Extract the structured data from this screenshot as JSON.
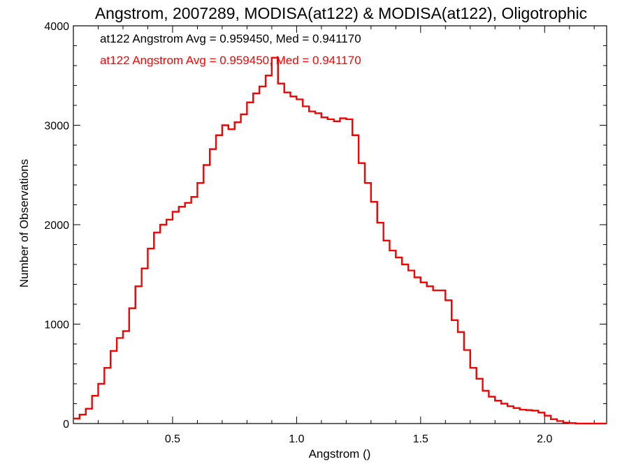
{
  "chart_data": {
    "type": "line",
    "title": "Angstrom, 2007289, MODISA(at122) & MODISA(at122), Oligotrophic",
    "xlabel": "Angstrom ()",
    "ylabel": "Number of Observations",
    "xlim": [
      0.1,
      2.25
    ],
    "ylim": [
      0,
      4000
    ],
    "x_ticks": [
      0.5,
      1.0,
      1.5,
      2.0
    ],
    "x_tick_labels": [
      "0.5",
      "1.0",
      "1.5",
      "2.0"
    ],
    "y_ticks": [
      0,
      1000,
      2000,
      3000,
      4000
    ],
    "y_tick_labels": [
      "0",
      "1000",
      "2000",
      "3000",
      "4000"
    ],
    "grid": false,
    "legend_placement": "top-left",
    "series": [
      {
        "name": "at122 Angstrom Avg = 0.959450, Med = 0.941170",
        "color": "#000000",
        "x": [
          0.1,
          0.125,
          0.15,
          0.175,
          0.2,
          0.225,
          0.25,
          0.275,
          0.3,
          0.325,
          0.35,
          0.375,
          0.4,
          0.425,
          0.45,
          0.475,
          0.5,
          0.525,
          0.55,
          0.575,
          0.6,
          0.625,
          0.65,
          0.675,
          0.7,
          0.725,
          0.75,
          0.775,
          0.8,
          0.825,
          0.85,
          0.875,
          0.9,
          0.925,
          0.95,
          0.975,
          1.0,
          1.025,
          1.05,
          1.075,
          1.1,
          1.125,
          1.15,
          1.175,
          1.2,
          1.225,
          1.25,
          1.275,
          1.3,
          1.325,
          1.35,
          1.375,
          1.4,
          1.425,
          1.45,
          1.475,
          1.5,
          1.525,
          1.55,
          1.575,
          1.6,
          1.625,
          1.65,
          1.675,
          1.7,
          1.725,
          1.75,
          1.775,
          1.8,
          1.825,
          1.85,
          1.875,
          1.9,
          1.925,
          1.95,
          1.975,
          2.0,
          2.025,
          2.05,
          2.075,
          2.1,
          2.125,
          2.15,
          2.175,
          2.2,
          2.25
        ],
        "y": [
          50,
          90,
          150,
          280,
          400,
          560,
          730,
          860,
          930,
          1160,
          1380,
          1560,
          1760,
          1920,
          2000,
          2050,
          2130,
          2180,
          2220,
          2280,
          2420,
          2600,
          2760,
          2900,
          3000,
          2960,
          3030,
          3110,
          3230,
          3320,
          3390,
          3500,
          3680,
          3420,
          3330,
          3290,
          3260,
          3190,
          3140,
          3120,
          3080,
          3060,
          3040,
          3070,
          3060,
          2900,
          2620,
          2420,
          2230,
          2020,
          1840,
          1740,
          1670,
          1600,
          1540,
          1470,
          1420,
          1380,
          1340,
          1340,
          1240,
          1040,
          920,
          740,
          560,
          450,
          330,
          270,
          230,
          200,
          175,
          155,
          140,
          135,
          130,
          110,
          80,
          45,
          25,
          10,
          5,
          0,
          0,
          0,
          0,
          0
        ]
      },
      {
        "name": "at122 Angstrom Avg = 0.959450, Med = 0.941170",
        "color": "#ff0000",
        "x": [
          0.1,
          0.125,
          0.15,
          0.175,
          0.2,
          0.225,
          0.25,
          0.275,
          0.3,
          0.325,
          0.35,
          0.375,
          0.4,
          0.425,
          0.45,
          0.475,
          0.5,
          0.525,
          0.55,
          0.575,
          0.6,
          0.625,
          0.65,
          0.675,
          0.7,
          0.725,
          0.75,
          0.775,
          0.8,
          0.825,
          0.85,
          0.875,
          0.9,
          0.925,
          0.95,
          0.975,
          1.0,
          1.025,
          1.05,
          1.075,
          1.1,
          1.125,
          1.15,
          1.175,
          1.2,
          1.225,
          1.25,
          1.275,
          1.3,
          1.325,
          1.35,
          1.375,
          1.4,
          1.425,
          1.45,
          1.475,
          1.5,
          1.525,
          1.55,
          1.575,
          1.6,
          1.625,
          1.65,
          1.675,
          1.7,
          1.725,
          1.75,
          1.775,
          1.8,
          1.825,
          1.85,
          1.875,
          1.9,
          1.925,
          1.95,
          1.975,
          2.0,
          2.025,
          2.05,
          2.075,
          2.1,
          2.125,
          2.15,
          2.175,
          2.2,
          2.25
        ],
        "y": [
          50,
          90,
          150,
          280,
          400,
          560,
          730,
          860,
          930,
          1160,
          1380,
          1560,
          1760,
          1920,
          2000,
          2050,
          2130,
          2180,
          2220,
          2280,
          2420,
          2600,
          2760,
          2900,
          3000,
          2960,
          3030,
          3110,
          3230,
          3320,
          3390,
          3500,
          3680,
          3420,
          3330,
          3290,
          3260,
          3190,
          3140,
          3120,
          3080,
          3060,
          3040,
          3070,
          3060,
          2900,
          2620,
          2420,
          2230,
          2020,
          1840,
          1740,
          1670,
          1600,
          1540,
          1470,
          1420,
          1380,
          1340,
          1340,
          1240,
          1040,
          920,
          740,
          560,
          450,
          330,
          270,
          230,
          200,
          175,
          155,
          140,
          135,
          130,
          110,
          80,
          45,
          25,
          10,
          5,
          0,
          0,
          0,
          0,
          0
        ]
      }
    ]
  }
}
